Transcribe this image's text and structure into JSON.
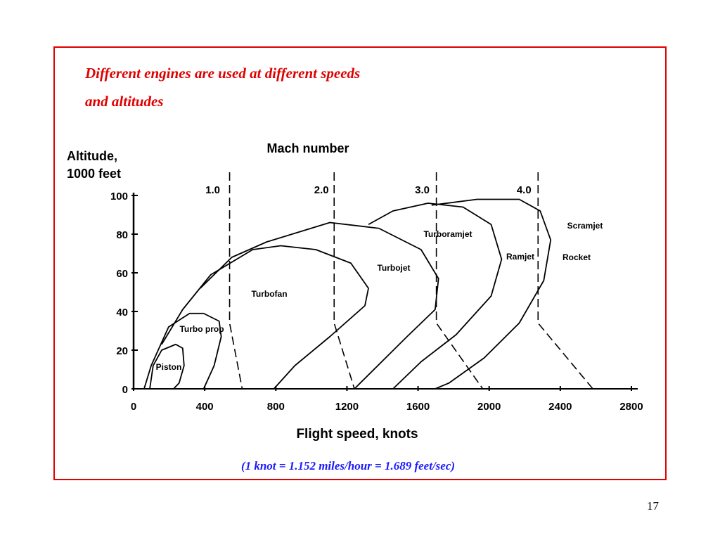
{
  "chart_data": {
    "type": "line",
    "title": [
      "Different engines are used at different speeds",
      "and altitudes"
    ],
    "ylabel": [
      "Altitude,",
      "1000 feet"
    ],
    "xlabel": "Flight speed, knots",
    "x2label": "Mach number",
    "xlim": [
      0,
      2800
    ],
    "ylim": [
      0,
      100
    ],
    "xticks": [
      0,
      400,
      800,
      1200,
      1600,
      2000,
      2400,
      2800
    ],
    "yticks": [
      0,
      20,
      40,
      60,
      80,
      100
    ],
    "series": [
      {
        "name": "Piston",
        "color": "#000000",
        "x": [
          91,
          110,
          158,
          237,
          276,
          284,
          256,
          225
        ],
        "values": [
          0,
          12,
          20,
          23,
          21,
          12,
          3,
          0
        ]
      },
      {
        "name": "Turbo prop",
        "color": "#000000",
        "x": [
          59,
          99,
          197,
          315,
          394,
          481,
          493,
          453,
          394
        ],
        "values": [
          0,
          12,
          32,
          39,
          39,
          35,
          27,
          12,
          0
        ]
      },
      {
        "name": "Turbofan",
        "color": "#000000",
        "x": [
          158,
          276,
          434,
          670,
          828,
          1025,
          1222,
          1321,
          1301,
          1104,
          907,
          789
        ],
        "values": [
          23,
          41,
          59,
          72,
          74,
          72,
          65,
          52,
          43,
          27,
          12,
          0
        ]
      },
      {
        "name": "Turbojet",
        "color": "#000000",
        "x": [
          375,
          552,
          749,
          1104,
          1380,
          1617,
          1715,
          1696,
          1538,
          1242
        ],
        "values": [
          52,
          68,
          76,
          86,
          83,
          72,
          57,
          41,
          27,
          0
        ]
      },
      {
        "name": "Turboramjet",
        "color": "#000000",
        "x": [
          1321,
          1459,
          1656,
          1853,
          2011,
          2070,
          2011,
          1814,
          1617,
          1459
        ],
        "values": [
          85,
          92,
          96,
          94,
          85,
          67,
          48,
          28,
          14,
          0
        ]
      },
      {
        "name": "Ramjet",
        "color": "#000000",
        "x": [
          1676,
          1932,
          2169,
          2287,
          2346,
          2307,
          2169,
          1972,
          1774,
          1696
        ],
        "values": [
          95,
          98,
          98,
          92,
          77,
          56,
          34,
          16,
          3,
          0
        ]
      }
    ],
    "mach_lines": [
      {
        "label": "1.0",
        "x": [
          540,
          540,
          611
        ],
        "values": [
          112,
          34,
          0
        ]
      },
      {
        "label": "2.0",
        "x": [
          1128,
          1128,
          1242
        ],
        "values": [
          112,
          34,
          0
        ]
      },
      {
        "label": "3.0",
        "x": [
          1703,
          1703,
          1964
        ],
        "values": [
          112,
          34,
          0
        ]
      },
      {
        "label": "4.0",
        "x": [
          2275,
          2275,
          2583
        ],
        "values": [
          112,
          34,
          0
        ]
      }
    ],
    "annotations": [
      "Scramjet",
      "Rocket"
    ]
  },
  "footnote": "(1 knot = 1.152 miles/hour = 1.689 feet/sec)",
  "page_number": "17"
}
